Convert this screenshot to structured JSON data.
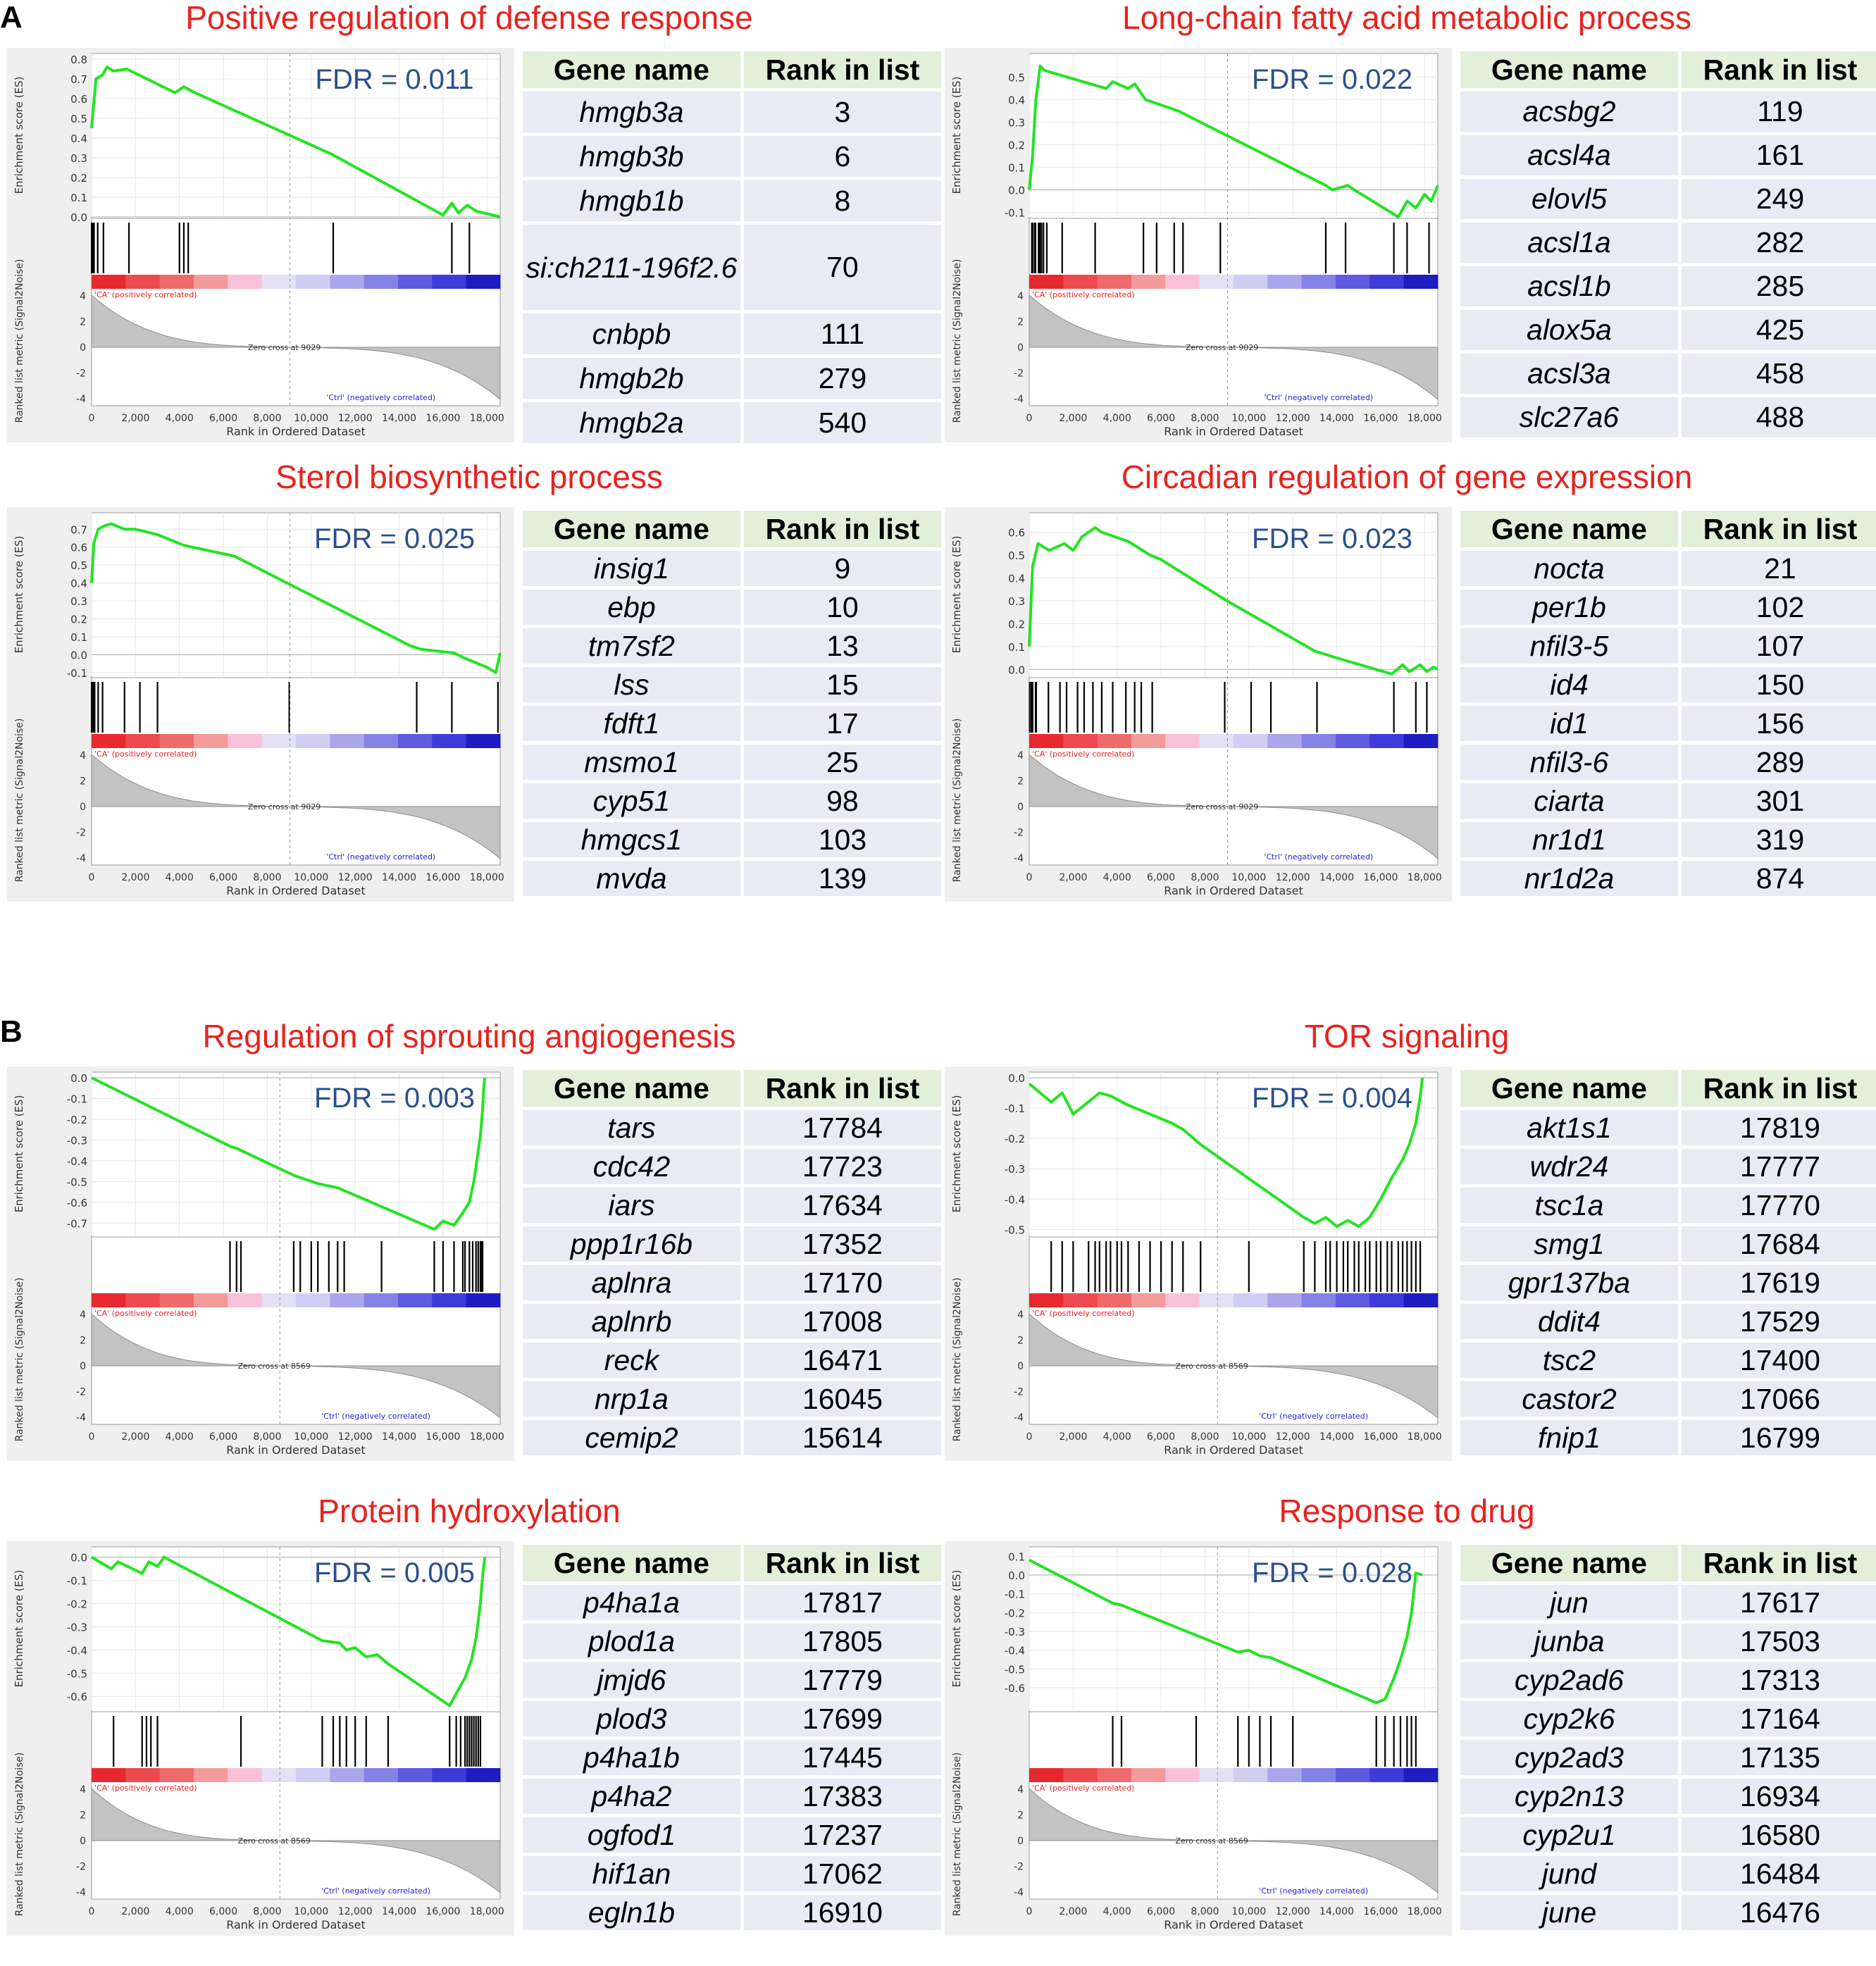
{
  "section_labels": [
    "A",
    "B"
  ],
  "table_headers": {
    "gene": "Gene name",
    "rank": "Rank in list"
  },
  "plot_text": {
    "es_ylabel": "Enrichment score (ES)",
    "metric_ylabel": "Ranked list metric (Signal2Noise)",
    "xlabel": "Rank in Ordered Dataset",
    "pos_label": "'CA' (positively correlated)",
    "neg_label": "'Ctrl' (negatively correlated)",
    "x_ticks": [
      "0",
      "2,000",
      "4,000",
      "6,000",
      "8,000",
      "10,000",
      "12,000",
      "14,000",
      "16,000",
      "18,000"
    ],
    "metric_ticks": [
      "4",
      "2",
      "0",
      "-2",
      "-4"
    ]
  },
  "colors": {
    "es_curve": "#22e422",
    "title": "#e8221e",
    "fdr": "#2b4f8c",
    "table_header": "#e2efd9",
    "table_row": "#e8eaf4"
  },
  "chart_data": [
    {
      "type": "line",
      "title": "Positive regulation of defense response",
      "fdr": "FDR = 0.011",
      "ylim": [
        0,
        0.8
      ],
      "y_ticks": [
        0.0,
        0.1,
        0.2,
        0.3,
        0.4,
        0.5,
        0.6,
        0.7,
        0.8
      ],
      "zero_cross": "Zero cross at 9029",
      "x": [
        0,
        200,
        500,
        700,
        1000,
        1600,
        3800,
        4200,
        4700,
        10900,
        16000,
        16400,
        16700,
        17100,
        17500,
        18600
      ],
      "y": [
        0.45,
        0.7,
        0.72,
        0.76,
        0.74,
        0.75,
        0.63,
        0.66,
        0.63,
        0.32,
        0.01,
        0.07,
        0.02,
        0.06,
        0.03,
        0.0
      ],
      "hits": [
        3,
        6,
        8,
        70,
        111,
        279,
        540,
        1700,
        4000,
        4200,
        4400,
        11000,
        16400,
        17200
      ],
      "genes": [
        {
          "name": "hmgb3a",
          "rank": "3"
        },
        {
          "name": "hmgb3b",
          "rank": "6"
        },
        {
          "name": "hmgb1b",
          "rank": "8"
        },
        {
          "name": "si:ch211-196f2.6",
          "rank": "70"
        },
        {
          "name": "cnbpb",
          "rank": "111"
        },
        {
          "name": "hmgb2b",
          "rank": "279"
        },
        {
          "name": "hmgb2a",
          "rank": "540"
        }
      ]
    },
    {
      "type": "line",
      "title": "Long-chain fatty acid metabolic process",
      "fdr": "FDR = 0.022",
      "ylim": [
        -0.12,
        0.58
      ],
      "y_ticks": [
        -0.1,
        0.0,
        0.1,
        0.2,
        0.3,
        0.4,
        0.5
      ],
      "zero_cross": "Zero cross at 9029",
      "x": [
        0,
        150,
        300,
        500,
        700,
        3500,
        3800,
        4500,
        4800,
        5300,
        6800,
        7200,
        13500,
        13800,
        14500,
        14800,
        16800,
        17200,
        17600,
        18000,
        18300,
        18600
      ],
      "y": [
        0.0,
        0.15,
        0.4,
        0.55,
        0.53,
        0.45,
        0.48,
        0.45,
        0.47,
        0.4,
        0.35,
        0.33,
        0.02,
        0.0,
        0.02,
        0.0,
        -0.12,
        -0.05,
        -0.08,
        -0.02,
        -0.05,
        0.02
      ],
      "hits": [
        119,
        161,
        249,
        282,
        285,
        425,
        458,
        488,
        560,
        650,
        800,
        1500,
        3000,
        5200,
        5800,
        6600,
        7000,
        8700,
        13500,
        14400,
        16600,
        17200,
        18200
      ],
      "genes": [
        {
          "name": "acsbg2",
          "rank": "119"
        },
        {
          "name": "acsl4a",
          "rank": "161"
        },
        {
          "name": "elovl5",
          "rank": "249"
        },
        {
          "name": "acsl1a",
          "rank": "282"
        },
        {
          "name": "acsl1b",
          "rank": "285"
        },
        {
          "name": "alox5a",
          "rank": "425"
        },
        {
          "name": "acsl3a",
          "rank": "458"
        },
        {
          "name": "slc27a6",
          "rank": "488"
        }
      ]
    },
    {
      "type": "line",
      "title": "Sterol biosynthetic process",
      "fdr": "FDR = 0.025",
      "ylim": [
        -0.12,
        0.76
      ],
      "y_ticks": [
        -0.1,
        0.0,
        0.1,
        0.2,
        0.3,
        0.4,
        0.5,
        0.6,
        0.7
      ],
      "zero_cross": "Zero cross at 9029",
      "x": [
        0,
        100,
        300,
        600,
        900,
        1500,
        2000,
        3000,
        4200,
        6500,
        14500,
        15000,
        16500,
        17000,
        18000,
        18400,
        18600
      ],
      "y": [
        0.4,
        0.62,
        0.7,
        0.72,
        0.73,
        0.7,
        0.7,
        0.67,
        0.61,
        0.55,
        0.05,
        0.03,
        0.01,
        -0.02,
        -0.07,
        -0.1,
        0.01
      ],
      "hits": [
        9,
        10,
        13,
        15,
        17,
        25,
        98,
        103,
        139,
        300,
        500,
        1500,
        2200,
        3000,
        9000,
        14800,
        16400,
        18500
      ],
      "genes": [
        {
          "name": "insig1",
          "rank": "9"
        },
        {
          "name": "ebp",
          "rank": "10"
        },
        {
          "name": "tm7sf2",
          "rank": "13"
        },
        {
          "name": "lss",
          "rank": "15"
        },
        {
          "name": "fdft1",
          "rank": "17"
        },
        {
          "name": "msmo1",
          "rank": "25"
        },
        {
          "name": "cyp51",
          "rank": "98"
        },
        {
          "name": "hmgcs1",
          "rank": "103"
        },
        {
          "name": "mvda",
          "rank": "139"
        }
      ]
    },
    {
      "type": "line",
      "title": "Circadian regulation of gene expression",
      "fdr": "FDR = 0.023",
      "ylim": [
        -0.03,
        0.66
      ],
      "y_ticks": [
        0.0,
        0.1,
        0.2,
        0.3,
        0.4,
        0.5,
        0.6
      ],
      "zero_cross": "Zero cross at 9029",
      "x": [
        0,
        150,
        400,
        900,
        1600,
        2000,
        2400,
        3000,
        3300,
        4500,
        5500,
        6000,
        9000,
        13000,
        14000,
        16500,
        17000,
        17300,
        17800,
        18100,
        18400,
        18600
      ],
      "y": [
        0.1,
        0.45,
        0.55,
        0.52,
        0.55,
        0.52,
        0.58,
        0.62,
        0.6,
        0.56,
        0.5,
        0.48,
        0.3,
        0.08,
        0.05,
        -0.02,
        0.02,
        -0.01,
        0.02,
        -0.01,
        0.01,
        0.0
      ],
      "hits": [
        21,
        102,
        107,
        150,
        156,
        289,
        301,
        319,
        874,
        1400,
        1700,
        2200,
        2500,
        2900,
        3300,
        3800,
        4400,
        4800,
        5100,
        5600,
        8900,
        10100,
        11000,
        13100,
        16600,
        17600,
        18100
      ],
      "genes": [
        {
          "name": "nocta",
          "rank": "21"
        },
        {
          "name": "per1b",
          "rank": "102"
        },
        {
          "name": "nfil3-5",
          "rank": "107"
        },
        {
          "name": "id4",
          "rank": "150"
        },
        {
          "name": "id1",
          "rank": "156"
        },
        {
          "name": "nfil3-6",
          "rank": "289"
        },
        {
          "name": "ciarta",
          "rank": "301"
        },
        {
          "name": "nr1d1",
          "rank": "319"
        },
        {
          "name": "nr1d2a",
          "rank": "874"
        }
      ]
    },
    {
      "type": "line",
      "title": "Regulation of sprouting angiogenesis",
      "fdr": "FDR = 0.003",
      "ylim": [
        -0.76,
        0.0
      ],
      "y_ticks": [
        -0.7,
        -0.6,
        -0.5,
        -0.4,
        -0.3,
        -0.2,
        -0.1,
        0.0
      ],
      "zero_cross": "Zero cross at 8569",
      "x": [
        0,
        6300,
        6600,
        9200,
        10300,
        11200,
        15600,
        16000,
        16500,
        16900,
        17200,
        17400,
        17500,
        17600,
        17700,
        17800,
        17850,
        17900
      ],
      "y": [
        0.0,
        -0.33,
        -0.34,
        -0.47,
        -0.51,
        -0.53,
        -0.73,
        -0.69,
        -0.71,
        -0.65,
        -0.6,
        -0.5,
        -0.43,
        -0.35,
        -0.28,
        -0.15,
        -0.05,
        0.0
      ],
      "hits": [
        6300,
        6600,
        6800,
        9200,
        9500,
        10000,
        10300,
        10800,
        11200,
        11500,
        13200,
        15600,
        16000,
        16500,
        16900,
        17000,
        17200,
        17350,
        17500,
        17600,
        17700,
        17750,
        17800
      ],
      "genes": [
        {
          "name": "tars",
          "rank": "17784"
        },
        {
          "name": "cdc42",
          "rank": "17723"
        },
        {
          "name": "iars",
          "rank": "17634"
        },
        {
          "name": "ppp1r16b",
          "rank": "17352"
        },
        {
          "name": "aplnra",
          "rank": "17170"
        },
        {
          "name": "aplnrb",
          "rank": "17008"
        },
        {
          "name": "reck",
          "rank": "16471"
        },
        {
          "name": "nrp1a",
          "rank": "16045"
        },
        {
          "name": "cemip2",
          "rank": "15614"
        }
      ]
    },
    {
      "type": "line",
      "title": "TOR signaling",
      "fdr": "FDR = 0.004",
      "ylim": [
        -0.52,
        0.0
      ],
      "y_ticks": [
        -0.5,
        -0.4,
        -0.3,
        -0.2,
        -0.1,
        0.0
      ],
      "zero_cross": "Zero cross at 8569",
      "x": [
        0,
        1000,
        1500,
        2000,
        3200,
        3700,
        4500,
        5500,
        6500,
        7000,
        7800,
        12500,
        13000,
        13500,
        14000,
        14500,
        15000,
        15500,
        16000,
        16500,
        17000,
        17300,
        17600,
        17800,
        17900
      ],
      "y": [
        -0.02,
        -0.08,
        -0.05,
        -0.12,
        -0.05,
        -0.06,
        -0.09,
        -0.12,
        -0.15,
        -0.17,
        -0.22,
        -0.46,
        -0.48,
        -0.46,
        -0.49,
        -0.47,
        -0.49,
        -0.46,
        -0.4,
        -0.33,
        -0.27,
        -0.22,
        -0.15,
        -0.06,
        0.0
      ],
      "hits": [
        1000,
        1500,
        2000,
        2700,
        3000,
        3200,
        3500,
        3700,
        4000,
        4200,
        4500,
        5000,
        5500,
        6000,
        6500,
        7000,
        7800,
        10000,
        12500,
        13000,
        13500,
        13700,
        14000,
        14300,
        14500,
        14800,
        15000,
        15300,
        15500,
        15800,
        16000,
        16300,
        16500,
        16800,
        17000,
        17200,
        17400,
        17600,
        17800
      ],
      "genes": [
        {
          "name": "akt1s1",
          "rank": "17819"
        },
        {
          "name": "wdr24",
          "rank": "17777"
        },
        {
          "name": "tsc1a",
          "rank": "17770"
        },
        {
          "name": "smg1",
          "rank": "17684"
        },
        {
          "name": "gpr137ba",
          "rank": "17619"
        },
        {
          "name": "ddit4",
          "rank": "17529"
        },
        {
          "name": "tsc2",
          "rank": "17400"
        },
        {
          "name": "castor2",
          "rank": "17066"
        },
        {
          "name": "fnip1",
          "rank": "16799"
        }
      ]
    },
    {
      "type": "line",
      "title": "Protein hydroxylation",
      "fdr": "FDR = 0.005",
      "ylim": [
        -0.66,
        0.02
      ],
      "y_ticks": [
        -0.6,
        -0.5,
        -0.4,
        -0.3,
        -0.2,
        -0.1,
        0.0
      ],
      "zero_cross": "Zero cross at 8569",
      "x": [
        0,
        900,
        1200,
        2300,
        2600,
        3000,
        3300,
        10500,
        11300,
        11600,
        12000,
        12500,
        13000,
        13500,
        16300,
        16700,
        17000,
        17300,
        17500,
        17700,
        17800,
        17900
      ],
      "y": [
        0.0,
        -0.05,
        -0.02,
        -0.07,
        -0.02,
        -0.04,
        0.0,
        -0.36,
        -0.37,
        -0.4,
        -0.39,
        -0.43,
        -0.42,
        -0.46,
        -0.64,
        -0.57,
        -0.52,
        -0.44,
        -0.35,
        -0.2,
        -0.08,
        0.0
      ],
      "hits": [
        1000,
        2300,
        2500,
        2700,
        3000,
        6800,
        10500,
        11000,
        11300,
        11600,
        12000,
        12500,
        13500,
        16300,
        16600,
        16800,
        17000,
        17100,
        17200,
        17300,
        17400,
        17500,
        17600,
        17700
      ],
      "genes": [
        {
          "name": "p4ha1a",
          "rank": "17817"
        },
        {
          "name": "plod1a",
          "rank": "17805"
        },
        {
          "name": "jmjd6",
          "rank": "17779"
        },
        {
          "name": "plod3",
          "rank": "17699"
        },
        {
          "name": "p4ha1b",
          "rank": "17445"
        },
        {
          "name": "p4ha2",
          "rank": "17383"
        },
        {
          "name": "ogfod1",
          "rank": "17237"
        },
        {
          "name": "hif1an",
          "rank": "17062"
        },
        {
          "name": "egln1b",
          "rank": "16910"
        }
      ]
    },
    {
      "type": "line",
      "title": "Response to drug",
      "fdr": "FDR = 0.028",
      "ylim": [
        -0.72,
        0.12
      ],
      "y_ticks": [
        -0.6,
        -0.5,
        -0.4,
        -0.3,
        -0.2,
        -0.1,
        0.0,
        0.1
      ],
      "zero_cross": "Zero cross at 8569",
      "x": [
        0,
        3800,
        4200,
        9500,
        10000,
        10500,
        11000,
        15800,
        16200,
        16600,
        16900,
        17200,
        17400,
        17600,
        17900
      ],
      "y": [
        0.08,
        -0.15,
        -0.16,
        -0.41,
        -0.4,
        -0.43,
        -0.44,
        -0.68,
        -0.66,
        -0.55,
        -0.45,
        -0.33,
        -0.2,
        0.01,
        0.0
      ],
      "hits": [
        3800,
        4200,
        7600,
        9500,
        10000,
        10500,
        11000,
        12000,
        15800,
        16200,
        16600,
        16900,
        17200,
        17400,
        17600
      ],
      "genes": [
        {
          "name": "jun",
          "rank": "17617"
        },
        {
          "name": "junba",
          "rank": "17503"
        },
        {
          "name": "cyp2ad6",
          "rank": "17313"
        },
        {
          "name": "cyp2k6",
          "rank": "17164"
        },
        {
          "name": "cyp2ad3",
          "rank": "17135"
        },
        {
          "name": "cyp2n13",
          "rank": "16934"
        },
        {
          "name": "cyp2u1",
          "rank": "16580"
        },
        {
          "name": "jund",
          "rank": "16484"
        },
        {
          "name": "june",
          "rank": "16476"
        }
      ]
    }
  ]
}
